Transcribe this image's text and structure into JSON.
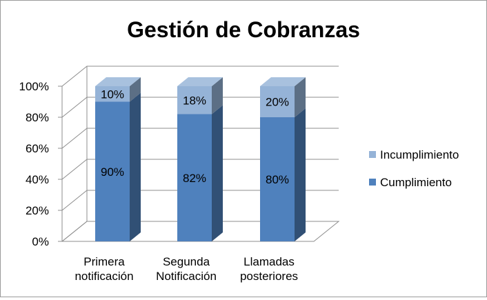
{
  "chart_data": {
    "type": "bar",
    "stacked": true,
    "percent": true,
    "three_d": true,
    "title": "Gestión de Cobranzas",
    "categories": [
      [
        "Primera",
        "notificación"
      ],
      [
        "Segunda",
        "Notificación"
      ],
      [
        "Llamadas",
        "posteriores"
      ]
    ],
    "series": [
      {
        "name": "Cumplimiento",
        "values": [
          90,
          82,
          80
        ],
        "data_labels": [
          "90%",
          "82%",
          "80%"
        ],
        "color": "#4f81bd"
      },
      {
        "name": "Incumplimiento",
        "values": [
          10,
          18,
          20
        ],
        "data_labels": [
          "10%",
          "18%",
          "20%"
        ],
        "color": "#95b3d7"
      }
    ],
    "y_ticks": [
      "0%",
      "20%",
      "40%",
      "60%",
      "80%",
      "100%"
    ],
    "ylim": [
      0,
      100
    ],
    "grid": true,
    "legend": {
      "position": "right",
      "order": [
        "Incumplimiento",
        "Cumplimiento"
      ]
    }
  }
}
